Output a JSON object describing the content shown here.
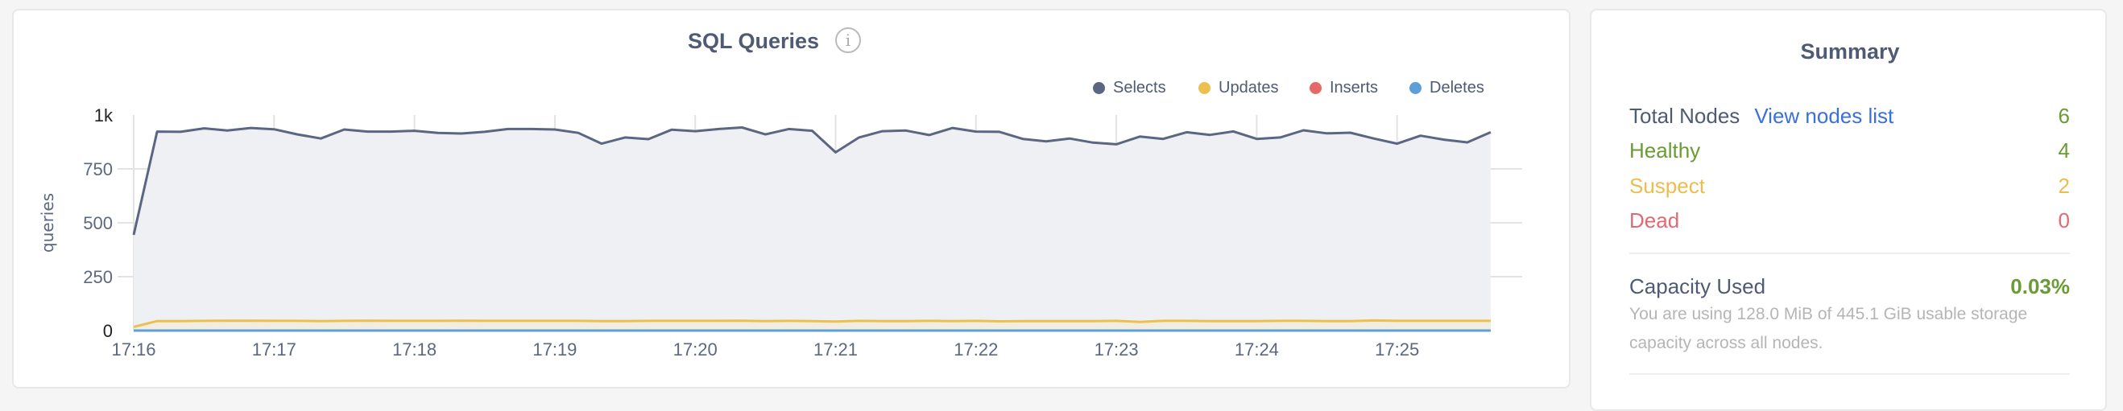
{
  "chart_card": {
    "title": "SQL Queries",
    "info_icon": "info-circle-icon"
  },
  "chart_data": {
    "type": "area",
    "title": "SQL Queries",
    "ylabel": "queries",
    "xlabel": "",
    "ylim": [
      0,
      1000
    ],
    "y_ticks": [
      0,
      250,
      500,
      750,
      1000
    ],
    "y_tick_labels": [
      "0",
      "250",
      "500",
      "750",
      "1k"
    ],
    "x_tick_labels": [
      "17:16",
      "17:17",
      "17:18",
      "17:19",
      "17:20",
      "17:21",
      "17:22",
      "17:23",
      "17:24",
      "17:25"
    ],
    "grid": true,
    "legend_position": "top-right",
    "x": [
      "17:16:00",
      "17:16:10",
      "17:16:20",
      "17:16:30",
      "17:16:40",
      "17:16:50",
      "17:17:00",
      "17:17:10",
      "17:17:20",
      "17:17:30",
      "17:17:40",
      "17:17:50",
      "17:18:00",
      "17:18:10",
      "17:18:20",
      "17:18:30",
      "17:18:40",
      "17:18:50",
      "17:19:00",
      "17:19:10",
      "17:19:20",
      "17:19:30",
      "17:19:40",
      "17:19:50",
      "17:20:00",
      "17:20:10",
      "17:20:20",
      "17:20:30",
      "17:20:40",
      "17:20:50",
      "17:21:00",
      "17:21:10",
      "17:21:20",
      "17:21:30",
      "17:21:40",
      "17:21:50",
      "17:22:00",
      "17:22:10",
      "17:22:20",
      "17:22:30",
      "17:22:40",
      "17:22:50",
      "17:23:00",
      "17:23:10",
      "17:23:20",
      "17:23:30",
      "17:23:40",
      "17:23:50",
      "17:24:00",
      "17:24:10",
      "17:24:20",
      "17:24:30",
      "17:24:40",
      "17:24:50",
      "17:25:00",
      "17:25:10",
      "17:25:20",
      "17:25:30",
      "17:25:40"
    ],
    "series": [
      {
        "name": "Selects",
        "color": "#5b6682",
        "fill": "#eef0f4",
        "values": [
          444,
          923,
          922,
          938,
          928,
          940,
          934,
          910,
          891,
          933,
          923,
          923,
          927,
          917,
          914,
          922,
          935,
          935,
          933,
          917,
          867,
          896,
          888,
          932,
          925,
          935,
          942,
          910,
          935,
          927,
          827,
          896,
          925,
          928,
          907,
          940,
          923,
          922,
          889,
          878,
          891,
          872,
          864,
          900,
          889,
          920,
          908,
          924,
          889,
          896,
          929,
          915,
          918,
          891,
          867,
          904,
          886,
          873,
          920
        ]
      },
      {
        "name": "Updates",
        "color": "#ecc04f",
        "fill": "#f2ede1",
        "values": [
          17,
          44,
          44,
          45,
          46,
          46,
          45,
          45,
          44,
          45,
          46,
          45,
          45,
          45,
          46,
          45,
          45,
          45,
          45,
          45,
          44,
          44,
          45,
          45,
          45,
          45,
          46,
          44,
          45,
          44,
          42,
          45,
          44,
          44,
          45,
          44,
          45,
          43,
          44,
          44,
          44,
          44,
          45,
          40,
          45,
          45,
          44,
          44,
          44,
          45,
          45,
          44,
          44,
          47,
          45,
          45,
          45,
          45,
          45
        ]
      },
      {
        "name": "Inserts",
        "color": "#e46a6a",
        "fill": "none",
        "values": [
          0,
          0,
          0,
          0,
          0,
          0,
          0,
          0,
          0,
          0,
          0,
          0,
          0,
          0,
          0,
          0,
          0,
          0,
          0,
          0,
          0,
          0,
          0,
          0,
          0,
          0,
          0,
          0,
          0,
          0,
          0,
          0,
          0,
          0,
          0,
          0,
          0,
          0,
          0,
          0,
          0,
          0,
          0,
          0,
          0,
          0,
          0,
          0,
          0,
          0,
          0,
          0,
          0,
          0,
          0,
          0,
          0,
          0,
          0
        ]
      },
      {
        "name": "Deletes",
        "color": "#5c9ed6",
        "fill": "none",
        "values": [
          0,
          0,
          0,
          0,
          0,
          0,
          0,
          0,
          0,
          0,
          0,
          0,
          0,
          0,
          0,
          0,
          0,
          0,
          0,
          0,
          0,
          0,
          0,
          0,
          0,
          0,
          0,
          0,
          0,
          0,
          0,
          0,
          0,
          0,
          0,
          0,
          0,
          0,
          0,
          0,
          0,
          0,
          0,
          0,
          0,
          0,
          0,
          0,
          0,
          0,
          0,
          0,
          0,
          0,
          0,
          0,
          0,
          0,
          0
        ]
      }
    ]
  },
  "summary": {
    "title": "Summary",
    "total_nodes_label": "Total Nodes",
    "view_nodes_link": "View nodes list",
    "total_nodes_value": "6",
    "healthy_label": "Healthy",
    "healthy_value": "4",
    "suspect_label": "Suspect",
    "suspect_value": "2",
    "dead_label": "Dead",
    "dead_value": "0",
    "capacity_label": "Capacity Used",
    "capacity_value": "0.03%",
    "capacity_desc": "You are using 128.0 MiB of 445.1 GiB usable storage capacity across all nodes.",
    "colors": {
      "healthy": "#6b9b35",
      "suspect": "#ecbd4e",
      "dead": "#e06a74",
      "text": "#4f5b74",
      "link": "#3a6fe0"
    }
  }
}
